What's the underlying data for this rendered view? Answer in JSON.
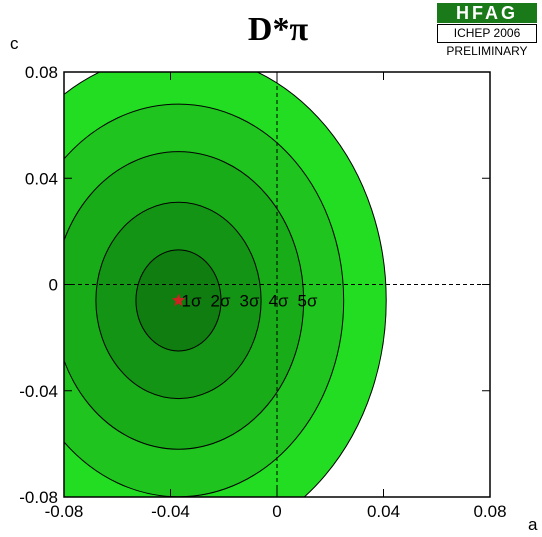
{
  "chart_data": {
    "type": "contour",
    "title": "D*π",
    "xlabel": "a",
    "ylabel": "c",
    "xlim": [
      -0.08,
      0.08
    ],
    "ylim": [
      -0.08,
      0.08
    ],
    "x_ticks": [
      -0.08,
      -0.04,
      0,
      0.04,
      0.08
    ],
    "y_ticks": [
      -0.08,
      -0.04,
      0,
      0.04,
      0.08
    ],
    "x_tick_labels": [
      "-0.08",
      "-0.04",
      "0",
      "0.04",
      "0.08"
    ],
    "y_tick_labels": [
      "-0.08",
      "-0.04",
      "0",
      "0.04",
      "0.08"
    ],
    "central_value": {
      "a": -0.037,
      "c": -0.006
    },
    "contours": [
      {
        "label": "5σ",
        "half_width_a": 0.083,
        "half_height_c": 0.083,
        "color": "#22dd22"
      },
      {
        "label": "4σ",
        "half_width_a": 0.066,
        "half_height_c": 0.066,
        "color": "#1fc41f"
      },
      {
        "label": "3σ",
        "half_width_a": 0.05,
        "half_height_c": 0.05,
        "color": "#19ac19"
      },
      {
        "label": "2σ",
        "half_width_a": 0.033,
        "half_height_c": 0.033,
        "color": "#149414"
      },
      {
        "label": "1σ",
        "half_width_a": 0.017,
        "half_height_c": 0.017,
        "color": "#0f7d0f"
      }
    ],
    "reference_lines": {
      "x": 0,
      "y": 0,
      "style": "dashed"
    },
    "grid": false
  },
  "logo": {
    "name": "HFAG",
    "conference": "ICHEP 2006",
    "status": "PRELIMINARY"
  },
  "colors": {
    "logo_green": "#1a7a1a",
    "central_marker": "#cc2222"
  }
}
